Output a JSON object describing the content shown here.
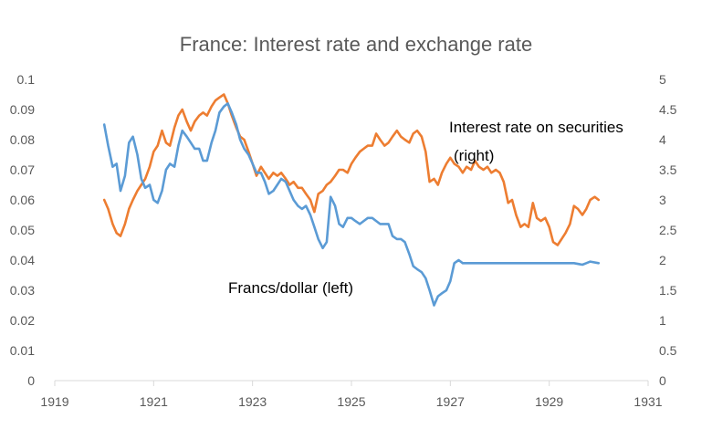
{
  "chart_data": {
    "type": "line",
    "title": "France: Interest rate and exchange rate",
    "x_axis": {
      "range": [
        1919,
        1931
      ],
      "ticks": [
        1919,
        1921,
        1923,
        1925,
        1927,
        1929,
        1931
      ],
      "tick_labels": [
        "1919",
        "1921",
        "1923",
        "1925",
        "1927",
        "1929",
        "1931"
      ]
    },
    "y_left": {
      "range": [
        0,
        0.1
      ],
      "ticks": [
        0,
        0.01,
        0.02,
        0.03,
        0.04,
        0.05,
        0.06,
        0.07,
        0.08,
        0.09,
        0.1
      ],
      "tick_labels": [
        "0",
        "0.01",
        "0.02",
        "0.03",
        "0.04",
        "0.05",
        "0.06",
        "0.07",
        "0.08",
        "0.09",
        "0.1"
      ]
    },
    "y_right": {
      "range": [
        0,
        5
      ],
      "ticks": [
        0,
        0.5,
        1,
        1.5,
        2,
        2.5,
        3,
        3.5,
        4,
        4.5,
        5
      ],
      "tick_labels": [
        "0",
        "0.5",
        "1",
        "1.5",
        "2",
        "2.5",
        "3",
        "3.5",
        "4",
        "4.5",
        "5"
      ]
    },
    "grid": false,
    "legend": "none",
    "annotations": [
      {
        "lines": [
          "Interest rate on securities",
          "(right)"
        ],
        "series": "interest"
      },
      {
        "lines": [
          "Francs/dollar (left)"
        ],
        "series": "francs"
      }
    ],
    "colors": {
      "francs": "#5B9BD5",
      "interest": "#ED7D31",
      "axis": "#D9D9D9",
      "text": "#595959"
    },
    "series": [
      {
        "key": "francs",
        "axis": "left",
        "color": "#5B9BD5",
        "points": [
          [
            1920.0,
            0.085
          ],
          [
            1920.08,
            0.078
          ],
          [
            1920.17,
            0.071
          ],
          [
            1920.25,
            0.072
          ],
          [
            1920.33,
            0.063
          ],
          [
            1920.42,
            0.068
          ],
          [
            1920.5,
            0.079
          ],
          [
            1920.58,
            0.081
          ],
          [
            1920.67,
            0.075
          ],
          [
            1920.75,
            0.067
          ],
          [
            1920.83,
            0.064
          ],
          [
            1920.92,
            0.065
          ],
          [
            1921.0,
            0.06
          ],
          [
            1921.08,
            0.059
          ],
          [
            1921.17,
            0.063
          ],
          [
            1921.25,
            0.07
          ],
          [
            1921.33,
            0.072
          ],
          [
            1921.42,
            0.071
          ],
          [
            1921.5,
            0.078
          ],
          [
            1921.58,
            0.083
          ],
          [
            1921.67,
            0.081
          ],
          [
            1921.75,
            0.079
          ],
          [
            1921.83,
            0.077
          ],
          [
            1921.92,
            0.077
          ],
          [
            1922.0,
            0.073
          ],
          [
            1922.08,
            0.073
          ],
          [
            1922.17,
            0.079
          ],
          [
            1922.25,
            0.083
          ],
          [
            1922.33,
            0.089
          ],
          [
            1922.42,
            0.091
          ],
          [
            1922.5,
            0.092
          ],
          [
            1922.58,
            0.089
          ],
          [
            1922.67,
            0.085
          ],
          [
            1922.75,
            0.08
          ],
          [
            1922.83,
            0.077
          ],
          [
            1922.92,
            0.075
          ],
          [
            1923.0,
            0.072
          ],
          [
            1923.08,
            0.069
          ],
          [
            1923.17,
            0.069
          ],
          [
            1923.25,
            0.066
          ],
          [
            1923.33,
            0.062
          ],
          [
            1923.42,
            0.063
          ],
          [
            1923.5,
            0.065
          ],
          [
            1923.58,
            0.067
          ],
          [
            1923.67,
            0.066
          ],
          [
            1923.75,
            0.063
          ],
          [
            1923.83,
            0.06
          ],
          [
            1923.92,
            0.058
          ],
          [
            1924.0,
            0.057
          ],
          [
            1924.08,
            0.058
          ],
          [
            1924.17,
            0.055
          ],
          [
            1924.25,
            0.051
          ],
          [
            1924.33,
            0.047
          ],
          [
            1924.42,
            0.044
          ],
          [
            1924.5,
            0.046
          ],
          [
            1924.58,
            0.061
          ],
          [
            1924.67,
            0.058
          ],
          [
            1924.75,
            0.052
          ],
          [
            1924.83,
            0.051
          ],
          [
            1924.92,
            0.054
          ],
          [
            1925.0,
            0.054
          ],
          [
            1925.08,
            0.053
          ],
          [
            1925.17,
            0.052
          ],
          [
            1925.25,
            0.053
          ],
          [
            1925.33,
            0.054
          ],
          [
            1925.42,
            0.054
          ],
          [
            1925.5,
            0.053
          ],
          [
            1925.58,
            0.052
          ],
          [
            1925.67,
            0.052
          ],
          [
            1925.75,
            0.052
          ],
          [
            1925.83,
            0.048
          ],
          [
            1925.92,
            0.047
          ],
          [
            1926.0,
            0.047
          ],
          [
            1926.08,
            0.046
          ],
          [
            1926.17,
            0.042
          ],
          [
            1926.25,
            0.038
          ],
          [
            1926.33,
            0.037
          ],
          [
            1926.42,
            0.036
          ],
          [
            1926.5,
            0.034
          ],
          [
            1926.58,
            0.03
          ],
          [
            1926.67,
            0.025
          ],
          [
            1926.75,
            0.028
          ],
          [
            1926.83,
            0.029
          ],
          [
            1926.92,
            0.03
          ],
          [
            1927.0,
            0.033
          ],
          [
            1927.08,
            0.039
          ],
          [
            1927.17,
            0.04
          ],
          [
            1927.25,
            0.039
          ],
          [
            1927.33,
            0.039
          ],
          [
            1927.5,
            0.039
          ],
          [
            1927.67,
            0.039
          ],
          [
            1927.83,
            0.039
          ],
          [
            1928.0,
            0.039
          ],
          [
            1928.25,
            0.039
          ],
          [
            1928.5,
            0.039
          ],
          [
            1928.75,
            0.039
          ],
          [
            1929.0,
            0.039
          ],
          [
            1929.25,
            0.039
          ],
          [
            1929.5,
            0.039
          ],
          [
            1929.67,
            0.0385
          ],
          [
            1929.75,
            0.039
          ],
          [
            1929.83,
            0.0395
          ],
          [
            1930.0,
            0.039
          ]
        ]
      },
      {
        "key": "interest",
        "axis": "right",
        "color": "#ED7D31",
        "points": [
          [
            1920.0,
            3.0
          ],
          [
            1920.08,
            2.85
          ],
          [
            1920.17,
            2.6
          ],
          [
            1920.25,
            2.45
          ],
          [
            1920.33,
            2.4
          ],
          [
            1920.42,
            2.6
          ],
          [
            1920.5,
            2.85
          ],
          [
            1920.58,
            3.0
          ],
          [
            1920.67,
            3.15
          ],
          [
            1920.75,
            3.25
          ],
          [
            1920.83,
            3.35
          ],
          [
            1920.92,
            3.55
          ],
          [
            1921.0,
            3.8
          ],
          [
            1921.08,
            3.9
          ],
          [
            1921.17,
            4.15
          ],
          [
            1921.25,
            3.95
          ],
          [
            1921.33,
            3.9
          ],
          [
            1921.42,
            4.2
          ],
          [
            1921.5,
            4.4
          ],
          [
            1921.58,
            4.5
          ],
          [
            1921.67,
            4.3
          ],
          [
            1921.75,
            4.15
          ],
          [
            1921.83,
            4.3
          ],
          [
            1921.92,
            4.4
          ],
          [
            1922.0,
            4.45
          ],
          [
            1922.08,
            4.4
          ],
          [
            1922.17,
            4.55
          ],
          [
            1922.25,
            4.65
          ],
          [
            1922.33,
            4.7
          ],
          [
            1922.42,
            4.75
          ],
          [
            1922.5,
            4.6
          ],
          [
            1922.58,
            4.4
          ],
          [
            1922.67,
            4.2
          ],
          [
            1922.75,
            4.05
          ],
          [
            1922.83,
            4.0
          ],
          [
            1922.92,
            3.8
          ],
          [
            1923.0,
            3.6
          ],
          [
            1923.08,
            3.4
          ],
          [
            1923.17,
            3.55
          ],
          [
            1923.25,
            3.45
          ],
          [
            1923.33,
            3.35
          ],
          [
            1923.42,
            3.45
          ],
          [
            1923.5,
            3.4
          ],
          [
            1923.58,
            3.45
          ],
          [
            1923.67,
            3.35
          ],
          [
            1923.75,
            3.25
          ],
          [
            1923.83,
            3.3
          ],
          [
            1923.92,
            3.2
          ],
          [
            1924.0,
            3.2
          ],
          [
            1924.08,
            3.1
          ],
          [
            1924.17,
            3.0
          ],
          [
            1924.25,
            2.8
          ],
          [
            1924.33,
            3.1
          ],
          [
            1924.42,
            3.15
          ],
          [
            1924.5,
            3.25
          ],
          [
            1924.58,
            3.3
          ],
          [
            1924.67,
            3.4
          ],
          [
            1924.75,
            3.5
          ],
          [
            1924.83,
            3.5
          ],
          [
            1924.92,
            3.45
          ],
          [
            1925.0,
            3.6
          ],
          [
            1925.08,
            3.7
          ],
          [
            1925.17,
            3.8
          ],
          [
            1925.25,
            3.85
          ],
          [
            1925.33,
            3.9
          ],
          [
            1925.42,
            3.9
          ],
          [
            1925.5,
            4.1
          ],
          [
            1925.58,
            4.0
          ],
          [
            1925.67,
            3.9
          ],
          [
            1925.75,
            3.95
          ],
          [
            1925.83,
            4.05
          ],
          [
            1925.92,
            4.15
          ],
          [
            1926.0,
            4.05
          ],
          [
            1926.08,
            4.0
          ],
          [
            1926.17,
            3.95
          ],
          [
            1926.25,
            4.1
          ],
          [
            1926.33,
            4.15
          ],
          [
            1926.42,
            4.05
          ],
          [
            1926.5,
            3.8
          ],
          [
            1926.58,
            3.3
          ],
          [
            1926.67,
            3.35
          ],
          [
            1926.75,
            3.25
          ],
          [
            1926.83,
            3.45
          ],
          [
            1926.92,
            3.6
          ],
          [
            1927.0,
            3.7
          ],
          [
            1927.08,
            3.6
          ],
          [
            1927.17,
            3.55
          ],
          [
            1927.25,
            3.45
          ],
          [
            1927.33,
            3.55
          ],
          [
            1927.42,
            3.5
          ],
          [
            1927.5,
            3.65
          ],
          [
            1927.58,
            3.55
          ],
          [
            1927.67,
            3.5
          ],
          [
            1927.75,
            3.55
          ],
          [
            1927.83,
            3.45
          ],
          [
            1927.92,
            3.5
          ],
          [
            1928.0,
            3.45
          ],
          [
            1928.08,
            3.3
          ],
          [
            1928.17,
            2.95
          ],
          [
            1928.25,
            3.0
          ],
          [
            1928.33,
            2.75
          ],
          [
            1928.42,
            2.55
          ],
          [
            1928.5,
            2.6
          ],
          [
            1928.58,
            2.55
          ],
          [
            1928.67,
            2.95
          ],
          [
            1928.75,
            2.7
          ],
          [
            1928.83,
            2.65
          ],
          [
            1928.92,
            2.7
          ],
          [
            1929.0,
            2.55
          ],
          [
            1929.08,
            2.3
          ],
          [
            1929.17,
            2.25
          ],
          [
            1929.25,
            2.35
          ],
          [
            1929.33,
            2.45
          ],
          [
            1929.42,
            2.6
          ],
          [
            1929.5,
            2.9
          ],
          [
            1929.58,
            2.85
          ],
          [
            1929.67,
            2.75
          ],
          [
            1929.75,
            2.85
          ],
          [
            1929.83,
            3.0
          ],
          [
            1929.92,
            3.05
          ],
          [
            1930.0,
            3.0
          ]
        ]
      }
    ]
  }
}
